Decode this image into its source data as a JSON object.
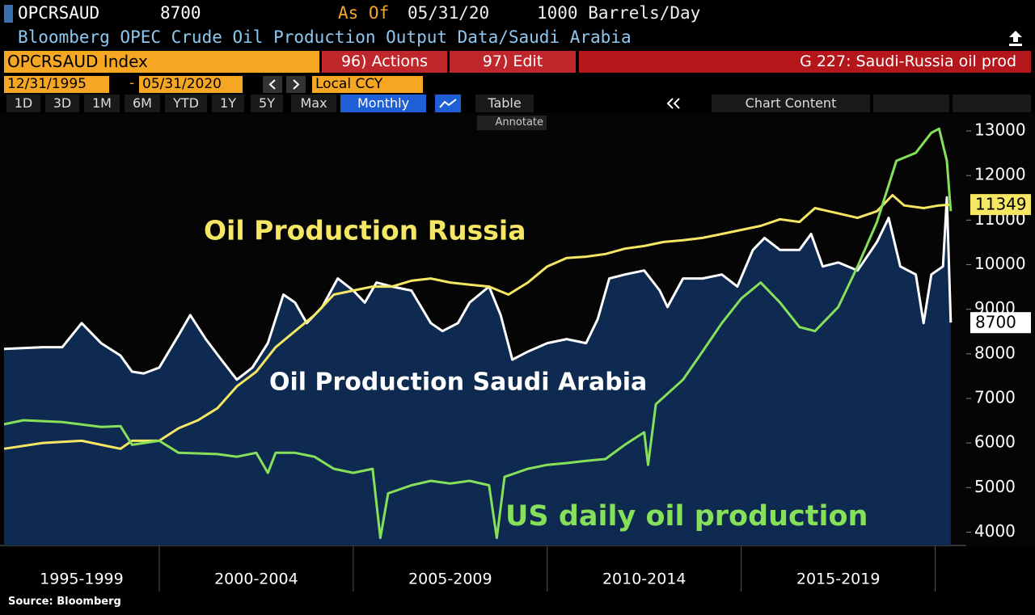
{
  "ui": {
    "ticker": "OPCRSAUD",
    "last": 8700,
    "as_of_label": "As Of",
    "as_of_date": "05/31/20",
    "units": "1000 Barrels/Day",
    "description": "Bloomberg OPEC Crude Oil Production Output Data/Saudi Arabia",
    "security": "OPCRSAUD Index",
    "actions": "96) Actions",
    "edit": "97) Edit",
    "chart_name": "G 227: Saudi-Russia oil prod",
    "start_date": "12/31/1995",
    "date_sep": "-",
    "end_date": "05/31/2020",
    "currency": "Local CCY",
    "periods": [
      "1D",
      "3D",
      "1M",
      "6M",
      "YTD",
      "1Y",
      "5Y",
      "Max"
    ],
    "frequency": "Monthly",
    "table": "Table",
    "chart_content": "Chart Content",
    "annotate": "Annotate",
    "source": "Source: Bloomberg"
  },
  "chart_data": {
    "type": "line",
    "xlim": [
      1996,
      2020.8
    ],
    "ylim": [
      3700,
      13400
    ],
    "yticks": [
      4000,
      5000,
      6000,
      7000,
      8000,
      9000,
      10000,
      11000,
      12000,
      13000
    ],
    "xticks": [
      {
        "value": 1998,
        "label": "1995-1999"
      },
      {
        "value": 2002.5,
        "label": "2000-2004"
      },
      {
        "value": 2007.5,
        "label": "2005-2009"
      },
      {
        "value": 2012.5,
        "label": "2010-2014"
      },
      {
        "value": 2017.5,
        "label": "2015-2019"
      }
    ],
    "x_dividers": [
      2000,
      2005,
      2010,
      2015,
      2020
    ],
    "grid": false,
    "series": [
      {
        "name": "Oil Production Saudi Arabia",
        "color": "#ffffff",
        "fill": "#0e2a50",
        "x": [
          1996.0,
          1997.0,
          1997.5,
          1998.0,
          1998.5,
          1999.0,
          1999.3,
          1999.6,
          2000.0,
          2000.5,
          2000.8,
          2001.2,
          2001.6,
          2002.0,
          2002.4,
          2002.8,
          2003.2,
          2003.5,
          2003.8,
          2004.2,
          2004.6,
          2005.0,
          2005.3,
          2005.6,
          2006.0,
          2006.5,
          2007.0,
          2007.3,
          2007.7,
          2008.0,
          2008.5,
          2008.8,
          2009.1,
          2009.5,
          2010.0,
          2010.5,
          2011.0,
          2011.3,
          2011.6,
          2012.0,
          2012.5,
          2012.9,
          2013.1,
          2013.5,
          2014.0,
          2014.5,
          2014.9,
          2015.3,
          2015.6,
          2016.0,
          2016.5,
          2016.8,
          2017.1,
          2017.5,
          2018.0,
          2018.5,
          2018.8,
          2019.1,
          2019.5,
          2019.7,
          2019.9,
          2020.2,
          2020.3,
          2020.4
        ],
        "values": [
          8110,
          8150,
          8150,
          8690,
          8240,
          7960,
          7600,
          7560,
          7690,
          8420,
          8870,
          8330,
          7870,
          7420,
          7690,
          8240,
          9330,
          9150,
          8690,
          9050,
          9690,
          9420,
          9150,
          9600,
          9510,
          9420,
          8690,
          8510,
          8690,
          9150,
          9510,
          8870,
          7870,
          8050,
          8240,
          8330,
          8240,
          8780,
          9690,
          9780,
          9870,
          9420,
          9050,
          9690,
          9690,
          9780,
          9510,
          10330,
          10600,
          10330,
          10330,
          10690,
          9960,
          10050,
          9870,
          10510,
          11050,
          9960,
          9780,
          8690,
          9780,
          9960,
          11510,
          8700
        ]
      },
      {
        "name": "Oil Production Russia",
        "color": "#f5e663",
        "x": [
          1996.0,
          1997.0,
          1998.0,
          1998.5,
          1999.0,
          1999.3,
          2000.0,
          2000.5,
          2001.0,
          2001.5,
          2002.0,
          2002.5,
          2003.0,
          2003.5,
          2004.0,
          2004.5,
          2005.0,
          2005.5,
          2006.0,
          2006.5,
          2007.0,
          2007.5,
          2008.0,
          2008.5,
          2009.0,
          2009.5,
          2010.0,
          2010.5,
          2011.0,
          2011.5,
          2012.0,
          2012.5,
          2013.0,
          2013.5,
          2014.0,
          2014.5,
          2015.0,
          2015.5,
          2016.0,
          2016.5,
          2016.9,
          2017.5,
          2018.0,
          2018.5,
          2018.9,
          2019.2,
          2019.7,
          2020.1,
          2020.4
        ],
        "values": [
          5870,
          6000,
          6050,
          5960,
          5870,
          6050,
          6050,
          6330,
          6510,
          6780,
          7270,
          7600,
          8150,
          8510,
          8870,
          9330,
          9420,
          9510,
          9510,
          9640,
          9690,
          9600,
          9550,
          9510,
          9330,
          9600,
          9960,
          10150,
          10180,
          10240,
          10360,
          10420,
          10510,
          10550,
          10600,
          10690,
          10780,
          10870,
          11020,
          10960,
          11270,
          11150,
          11050,
          11200,
          11560,
          11330,
          11270,
          11330,
          11349
        ]
      },
      {
        "name": "US daily oil production",
        "color": "#86e05a",
        "x": [
          1996.0,
          1996.5,
          1997.5,
          1998.5,
          1999.0,
          1999.3,
          2000.0,
          2000.5,
          2001.5,
          2002.0,
          2002.5,
          2002.8,
          2003.0,
          2003.5,
          2004.0,
          2004.5,
          2005.0,
          2005.5,
          2005.7,
          2005.9,
          2006.5,
          2007.0,
          2007.5,
          2008.0,
          2008.5,
          2008.7,
          2008.9,
          2009.5,
          2010.0,
          2010.5,
          2011.0,
          2011.5,
          2012.0,
          2012.5,
          2012.6,
          2012.8,
          2013.5,
          2014.0,
          2014.5,
          2015.0,
          2015.5,
          2016.0,
          2016.5,
          2016.9,
          2017.5,
          2018.0,
          2018.5,
          2019.0,
          2019.5,
          2019.9,
          2020.1,
          2020.3,
          2020.4
        ],
        "values": [
          6420,
          6510,
          6470,
          6360,
          6380,
          5960,
          6050,
          5780,
          5750,
          5690,
          5780,
          5330,
          5780,
          5780,
          5690,
          5420,
          5330,
          5420,
          3870,
          4870,
          5050,
          5150,
          5090,
          5150,
          5050,
          3870,
          5240,
          5420,
          5510,
          5550,
          5600,
          5640,
          5960,
          6240,
          5510,
          6870,
          7420,
          8050,
          8690,
          9240,
          9600,
          9150,
          8600,
          8510,
          9050,
          9960,
          10960,
          12330,
          12510,
          12960,
          13050,
          12330,
          11200
        ]
      }
    ]
  }
}
